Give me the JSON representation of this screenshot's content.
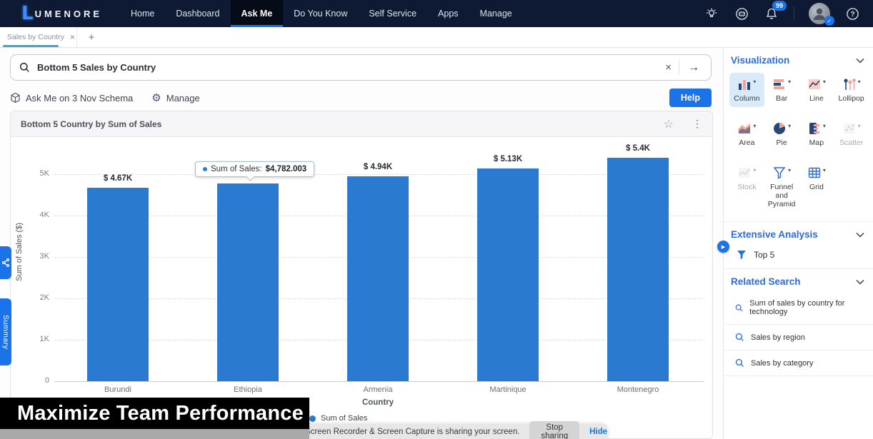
{
  "colors": {
    "accent": "#1a73e8",
    "bar": "#2b7ad2",
    "nav_bg": "#0e1a33",
    "tab_underline": "#45a6bc",
    "icon_salmon": "#f2a49b",
    "icon_navy": "#27477a"
  },
  "topnav": {
    "logo_l": "L",
    "logo_text": "UMENORE",
    "items": [
      {
        "label": "Home",
        "active": false
      },
      {
        "label": "Dashboard",
        "active": false
      },
      {
        "label": "Ask Me",
        "active": true
      },
      {
        "label": "Do You Know",
        "active": false
      },
      {
        "label": "Self Service",
        "active": false
      },
      {
        "label": "Apps",
        "active": false
      },
      {
        "label": "Manage",
        "active": false
      }
    ],
    "notification_count": "99"
  },
  "tabs": {
    "active_label": "Sales by Country"
  },
  "search": {
    "value": "Bottom 5 Sales by Country"
  },
  "schema_bar": {
    "schema_label": "Ask Me on 3 Nov Schema",
    "manage_label": "Manage",
    "help_label": "Help"
  },
  "card": {
    "title": "Bottom 5 Country by Sum of Sales"
  },
  "chart_data": {
    "type": "bar",
    "title": "Bottom 5 Country by Sum of Sales",
    "categories": [
      "Burundi",
      "Ethiopia",
      "Armenia",
      "Martinique",
      "Montenegro"
    ],
    "values": [
      4670,
      4782.003,
      4940,
      5130,
      5400
    ],
    "bar_labels": [
      "$ 4.67K",
      "$ 4.78K",
      "$ 4.94K",
      "$ 5.13K",
      "$ 5.4K"
    ],
    "xlabel": "Country",
    "ylabel": "Sum of Sales ($)",
    "ylim": [
      0,
      5500
    ],
    "yticks": [
      "5K",
      "4K",
      "3K",
      "2K",
      "1K",
      "0"
    ],
    "grid": "dotted horizontal",
    "legend": [
      "Sum of Sales"
    ],
    "legend_position": "bottom",
    "bar_color": "#2b7ad2",
    "tooltip": {
      "series": "Sum of Sales",
      "text": "Sum of Sales:",
      "value": "$4,782.003",
      "category": "Ethiopia"
    }
  },
  "viz_panel": {
    "title": "Visualization",
    "items": [
      {
        "label": "Column",
        "state": "selected"
      },
      {
        "label": "Bar",
        "state": "normal"
      },
      {
        "label": "Line",
        "state": "normal"
      },
      {
        "label": "Lollipop",
        "state": "normal"
      },
      {
        "label": "Area",
        "state": "normal"
      },
      {
        "label": "Pie",
        "state": "normal"
      },
      {
        "label": "Map",
        "state": "normal"
      },
      {
        "label": "Scatter",
        "state": "disabled"
      },
      {
        "label": "Stock",
        "state": "disabled"
      },
      {
        "label": "Funnel and Pyramid",
        "state": "normal"
      },
      {
        "label": "Grid",
        "state": "normal"
      }
    ]
  },
  "extensive": {
    "title": "Extensive Analysis",
    "items": [
      {
        "label": "Top 5"
      }
    ]
  },
  "related": {
    "title": "Related Search",
    "items": [
      {
        "label": "Sum of sales by country for technology"
      },
      {
        "label": "Sales by region"
      },
      {
        "label": "Sales by category"
      }
    ]
  },
  "side_tabs": {
    "summary_label": "Summary"
  },
  "overlay": {
    "caption": "Maximize Team Performance"
  },
  "share_bar": {
    "message": "Screen Recorder & Screen Capture is sharing your screen.",
    "stop_label": "Stop sharing",
    "hide_label": "Hide"
  },
  "icons": {
    "close": "×",
    "arrow_right": "→",
    "plus": "+",
    "kebab": "⋮",
    "star": "☆",
    "gear": "⚙",
    "caret_down": "▾",
    "play": "▶",
    "check": "✓",
    "question": "?"
  }
}
